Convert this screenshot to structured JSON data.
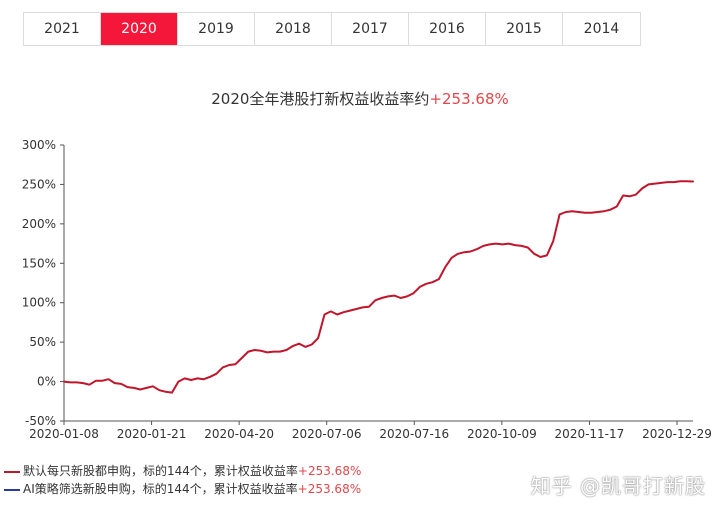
{
  "tabs": [
    {
      "label": "2021",
      "active": false
    },
    {
      "label": "2020",
      "active": true
    },
    {
      "label": "2019",
      "active": false
    },
    {
      "label": "2018",
      "active": false
    },
    {
      "label": "2017",
      "active": false
    },
    {
      "label": "2016",
      "active": false
    },
    {
      "label": "2015",
      "active": false
    },
    {
      "label": "2014",
      "active": false
    }
  ],
  "chart_data": {
    "type": "line",
    "title": "2020全年港股打新权益收益率约",
    "title_gain": "+253.68%",
    "xlabel": "",
    "ylabel": "",
    "ylim": [
      -50,
      300
    ],
    "y_ticks": [
      "-50%",
      "0%",
      "50%",
      "100%",
      "150%",
      "200%",
      "250%",
      "300%"
    ],
    "x_ticks": [
      "2020-01-08",
      "2020-01-21",
      "2020-04-20",
      "2020-07-06",
      "2020-07-16",
      "2020-10-09",
      "2020-11-17",
      "2020-12-29"
    ],
    "grid": false,
    "legend_position": "bottom-left",
    "series": [
      {
        "name": "默认每只新股都申购，标的144个，累计权益收益率",
        "name_gain": "+253.68%",
        "color": "#c1152c",
        "values": [
          0,
          -1,
          -1,
          -2,
          -4,
          1,
          1,
          3,
          -2,
          -3,
          -7,
          -8,
          -10,
          -8,
          -6,
          -11,
          -13,
          -14,
          0,
          4,
          2,
          4,
          3,
          6,
          10,
          18,
          21,
          22,
          30,
          38,
          40,
          39,
          37,
          38,
          38,
          40,
          45,
          48,
          44,
          47,
          55,
          85,
          89,
          85,
          88,
          90,
          92,
          94,
          95,
          103,
          106,
          108,
          109,
          106,
          108,
          112,
          120,
          124,
          126,
          130,
          145,
          157,
          162,
          164,
          165,
          168,
          172,
          174,
          175,
          174,
          175,
          173,
          172,
          170,
          162,
          158,
          160,
          178,
          212,
          215,
          216,
          215,
          214,
          214,
          215,
          216,
          218,
          222,
          236,
          235,
          237,
          245,
          250,
          251,
          252,
          253,
          253,
          254,
          254,
          253.68
        ]
      },
      {
        "name": "AI策略筛选新股申购，标的144个，累计权益收益率",
        "name_gain": "+253.68%",
        "color": "#2b3a9b",
        "values": []
      }
    ]
  },
  "watermark": "知乎 @凯哥打新股"
}
